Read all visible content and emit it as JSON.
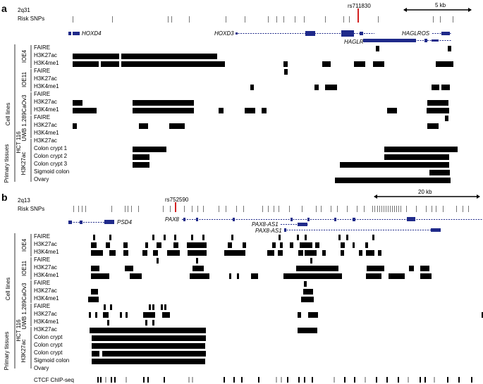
{
  "colors": {
    "feature": "#000000",
    "gene": "#1f2a8a",
    "risk_snp": "#d22020",
    "snp": "#777777",
    "ctcf_light": "#aaaaaa"
  },
  "panel_a": {
    "letter": "a",
    "locus": "2q31",
    "risk_snps_label": "Risk SNPs",
    "highlight_snp": "rs711830",
    "scale_label": "5 kb",
    "genes": [
      "HOXD4",
      "HOXD3",
      "HAGLR",
      "HAGLROS"
    ],
    "group_cell_lines": "Cell lines",
    "group_primary": "Primary tissues",
    "group_primary_sub": "H3K27ac",
    "cell_lines": [
      {
        "name": "IOE4",
        "tracks": [
          "FAIRE",
          "H3K27ac",
          "H3K4me1"
        ]
      },
      {
        "name": "IOE11",
        "tracks": [
          "FAIRE",
          "H3K27ac",
          "H3K4me1"
        ]
      },
      {
        "name": "CaOv3",
        "tracks": [
          "FAIRE",
          "H3K27ac",
          "H3K4me1"
        ]
      },
      {
        "name": "UWB 1.289",
        "tracks": [
          "FAIRE",
          "H3K27ac",
          "H3K4me1"
        ]
      },
      {
        "name": "HCT 116",
        "tracks": [
          "H3K27ac"
        ]
      }
    ],
    "tissues": [
      "Colon crypt 1",
      "Colon crypt 2",
      "Colon crypt 3",
      "Sigmoid colon",
      "Ovary"
    ]
  },
  "panel_b": {
    "letter": "b",
    "locus": "2q13",
    "risk_snps_label": "Risk SNPs",
    "highlight_snp": "rs752590",
    "scale_label": "20 kb",
    "genes": [
      "PSD4",
      "PAX8",
      "PAX8-AS1",
      "PAX8-AS1"
    ],
    "group_cell_lines": "Cell lines",
    "group_primary": "Primary tissues",
    "group_primary_sub": "H3K27ac",
    "cell_lines": [
      {
        "name": "IOE4",
        "tracks": [
          "FAIRE",
          "H3K27ac",
          "H3K4me1"
        ]
      },
      {
        "name": "IOE11",
        "tracks": [
          "FAIRE",
          "H3K27ac",
          "H3K4me1"
        ]
      },
      {
        "name": "CaOv3",
        "tracks": [
          "FAIRE",
          "H3K27ac",
          "H3K4me1"
        ]
      },
      {
        "name": "UWB 1.289",
        "tracks": [
          "FAIRE",
          "H3K27ac",
          "H3K4me1"
        ]
      },
      {
        "name": "HCT 116",
        "tracks": [
          "H3K27ac"
        ]
      }
    ],
    "tissues": [
      "Colon crypt",
      "Colon crypt",
      "Colon crypt",
      "Sigmoid colon",
      "Ovary"
    ],
    "ctcf_label": "CTCF ChIP-seq"
  }
}
